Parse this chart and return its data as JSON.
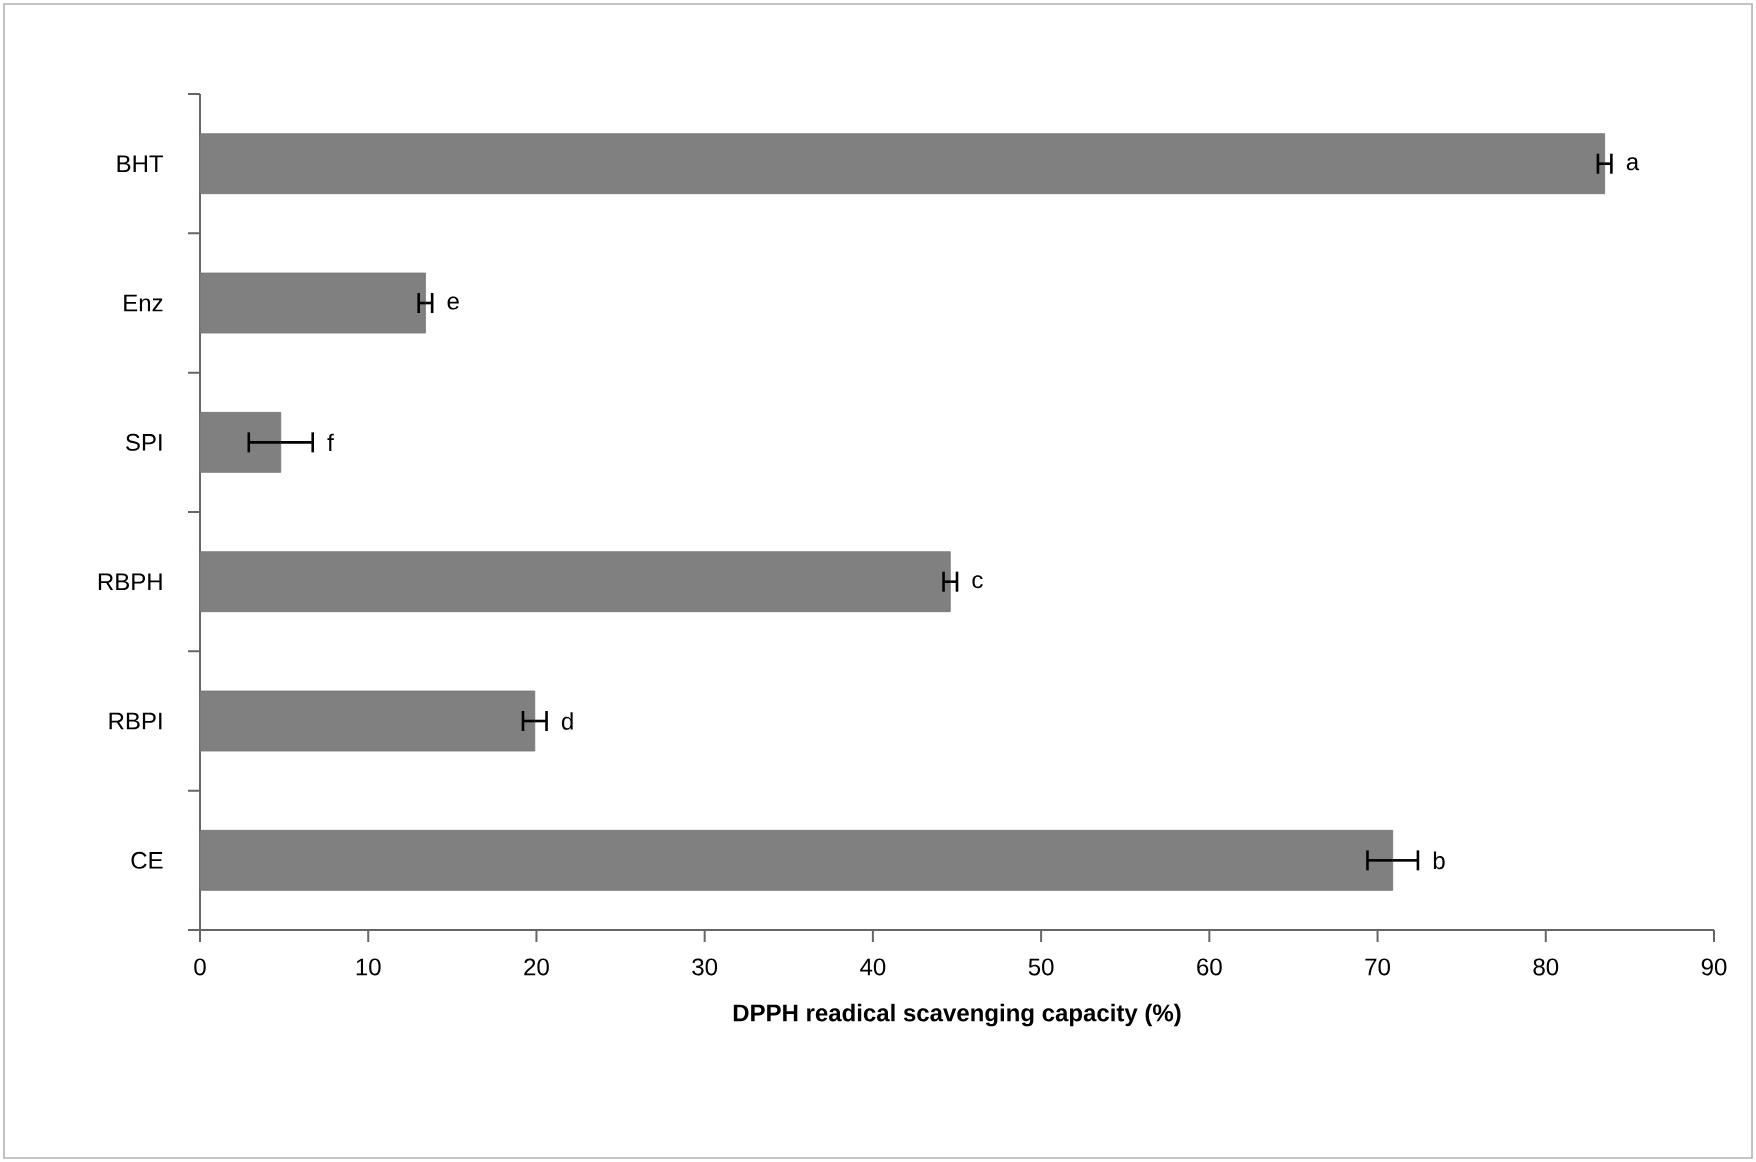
{
  "chart_data": {
    "type": "bar",
    "orientation": "horizontal",
    "xlabel": "DPPH readical scavenging capacity (%)",
    "categories": [
      "BHT",
      "Enz",
      "SPI",
      "RBPH",
      "RBPI",
      "CE"
    ],
    "values": [
      83.5,
      13.4,
      4.8,
      44.6,
      19.9,
      70.9
    ],
    "errors": [
      0.4,
      0.4,
      1.9,
      0.4,
      0.7,
      1.5
    ],
    "color": "#808080",
    "xlim": [
      0,
      90
    ],
    "xticks": [
      0,
      10,
      20,
      30,
      40,
      50,
      60,
      70,
      80,
      90
    ],
    "grid": false,
    "annotations": [
      {
        "text": "a",
        "x": 83.5,
        "y": "BHT"
      },
      {
        "text": "e",
        "x": 13.4,
        "y": "Enz"
      },
      {
        "text": "f",
        "x": 4.8,
        "y": "SPI"
      },
      {
        "text": "c",
        "x": 44.6,
        "y": "RBPH"
      },
      {
        "text": "d",
        "x": 19.9,
        "y": "RBPI"
      },
      {
        "text": "b",
        "x": 70.9,
        "y": "CE"
      }
    ]
  }
}
